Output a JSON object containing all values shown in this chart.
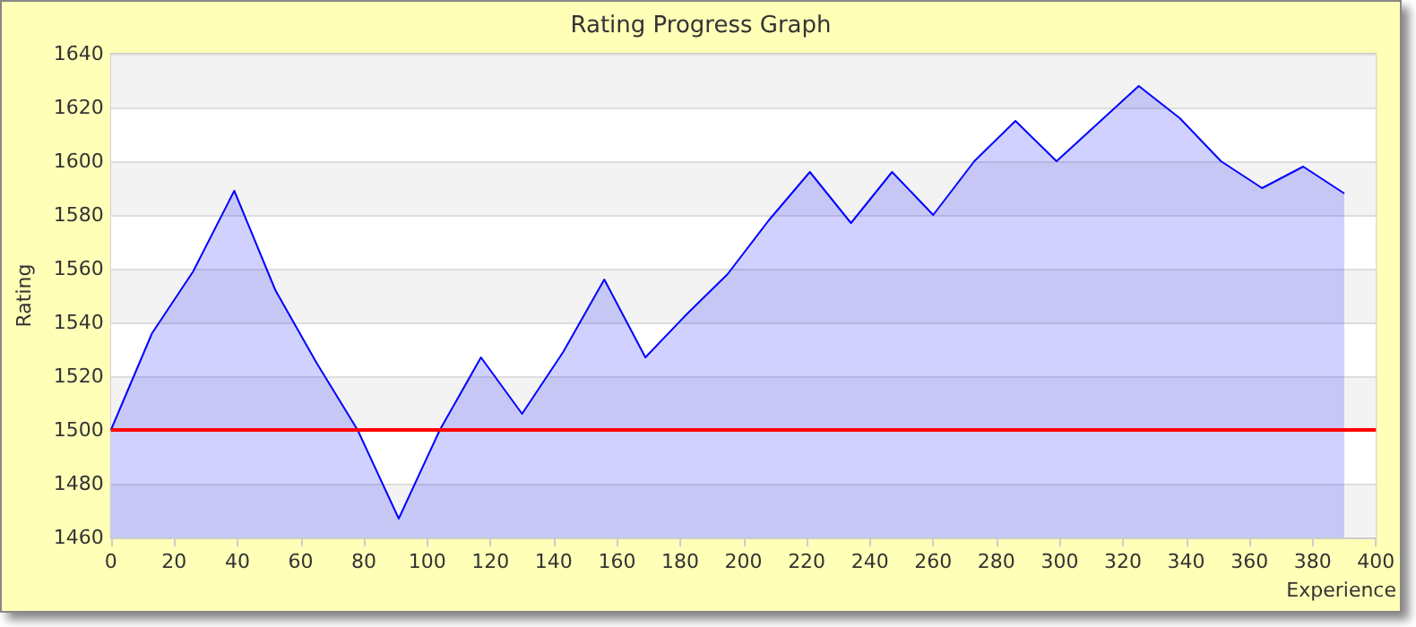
{
  "chart_data": {
    "type": "area",
    "title": "Rating Progress Graph",
    "xlabel": "Experience",
    "ylabel": "Rating",
    "x": [
      0,
      13,
      26,
      39,
      52,
      65,
      78,
      91,
      104,
      117,
      130,
      143,
      156,
      169,
      182,
      195,
      208,
      221,
      234,
      247,
      260,
      273,
      286,
      299,
      312,
      325,
      338,
      351,
      364,
      377,
      390
    ],
    "series": [
      {
        "color": "#0000ff",
        "values": [
          1500,
          1536,
          1559,
          1589,
          1552,
          1525,
          1500,
          1467,
          1500,
          1527,
          1506,
          1529,
          1556,
          1527,
          1543,
          1558,
          1578,
          1596,
          1577,
          1596,
          1580,
          1600,
          1615,
          1600,
          1614,
          1628,
          1616,
          1600,
          1590,
          1598,
          1588
        ]
      }
    ],
    "xlim": [
      0,
      400
    ],
    "xticks": [
      0,
      20,
      40,
      60,
      80,
      100,
      120,
      140,
      160,
      180,
      200,
      220,
      240,
      260,
      280,
      300,
      320,
      340,
      360,
      380,
      400
    ],
    "ylim": [
      1460,
      1640
    ],
    "yticks": [
      1460,
      1480,
      1500,
      1520,
      1540,
      1560,
      1580,
      1600,
      1620,
      1640
    ],
    "ref_lines": [
      {
        "axis": "y",
        "value": 1500,
        "color": "#ff0000"
      }
    ],
    "grid": "y",
    "marker": "none",
    "line_style": "solid"
  }
}
